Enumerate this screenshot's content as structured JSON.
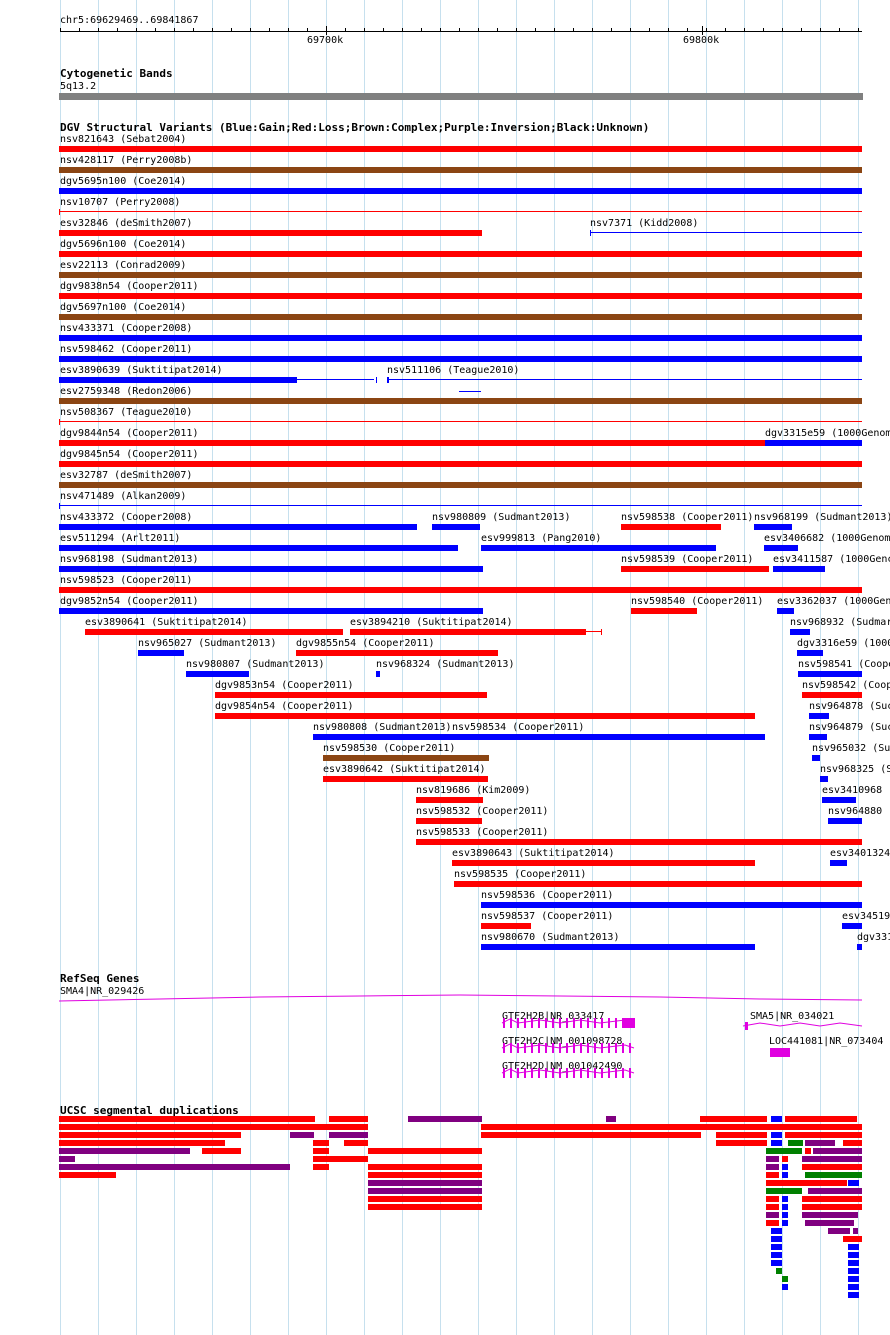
{
  "colors": {
    "gain": "#0000ff",
    "loss": "#ff0000",
    "complex": "#8b4513",
    "inversion": "#800080",
    "unknown": "#000000",
    "refseq": "#e000e0",
    "segdup_red": "#ff0000",
    "segdup_purple": "#800080",
    "segdup_green": "#008000",
    "segdup_blue": "#0000ff",
    "band": "#808080",
    "gridline": "#c6e0ee"
  },
  "ruler": {
    "position": "chr5:69629469..69841867",
    "tick_labels": [
      "69700k",
      "69800k"
    ]
  },
  "cytoband": {
    "title": "Cytogenetic Bands",
    "band_name": "5q13.2"
  },
  "dgv": {
    "title": "DGV Structural Variants (Blue:Gain;Red:Loss;Brown:Complex;Purple:Inversion;Black:Unknown)",
    "features": [
      {
        "label": "nsv821643 (Sebat2004)",
        "type": "loss",
        "style": "bar"
      },
      {
        "label": "nsv428117 (Perry2008b)",
        "type": "complex",
        "style": "bar"
      },
      {
        "label": "dgv5695n100 (Coe2014)",
        "type": "gain",
        "style": "bar"
      },
      {
        "label": "nsv10707 (Perry2008)",
        "type": "loss",
        "style": "line"
      },
      {
        "label": "esv32846 (deSmith2007)",
        "type": "loss",
        "style": "bar"
      },
      {
        "label": "nsv7371 (Kidd2008)",
        "type": "gain",
        "style": "line"
      },
      {
        "label": "dgv5696n100 (Coe2014)",
        "type": "loss",
        "style": "bar"
      },
      {
        "label": "esv22113 (Conrad2009)",
        "type": "complex",
        "style": "bar"
      },
      {
        "label": "dgv9838n54 (Cooper2011)",
        "type": "loss",
        "style": "bar"
      },
      {
        "label": "dgv5697n100 (Coe2014)",
        "type": "complex",
        "style": "bar"
      },
      {
        "label": "nsv433371 (Cooper2008)",
        "type": "gain",
        "style": "bar"
      },
      {
        "label": "nsv598462 (Cooper2011)",
        "type": "gain",
        "style": "bar"
      },
      {
        "label": "esv3890639 (Suktitipat2014)",
        "type": "gain",
        "style": "bar"
      },
      {
        "label": "nsv511106 (Teague2010)",
        "type": "gain",
        "style": "line"
      },
      {
        "label": "esv2759348 (Redon2006)",
        "type": "complex",
        "style": "bar"
      },
      {
        "label": "nsv508367 (Teague2010)",
        "type": "loss",
        "style": "line"
      },
      {
        "label": "dgv9844n54 (Cooper2011)",
        "type": "loss",
        "style": "bar"
      },
      {
        "label": "dgv3315e59 (1000Genom",
        "type": "gain",
        "style": "bar"
      },
      {
        "label": "dgv9845n54 (Cooper2011)",
        "type": "loss",
        "style": "bar"
      },
      {
        "label": "esv32787 (deSmith2007)",
        "type": "complex",
        "style": "bar"
      },
      {
        "label": "nsv471489 (Alkan2009)",
        "type": "gain",
        "style": "line"
      },
      {
        "label": "nsv433372 (Cooper2008)",
        "type": "gain",
        "style": "bar"
      },
      {
        "label": "nsv980809 (Sudmant2013)",
        "type": "gain",
        "style": "bar"
      },
      {
        "label": "nsv598538 (Cooper2011)",
        "type": "loss",
        "style": "bar"
      },
      {
        "label": "nsv968199 (Sudmant2013)",
        "type": "gain",
        "style": "bar"
      },
      {
        "label": "esv511294 (Arlt2011)",
        "type": "gain",
        "style": "bar"
      },
      {
        "label": "esv999813 (Pang2010)",
        "type": "gain",
        "style": "bar"
      },
      {
        "label": "esv3406682 (1000Genom",
        "type": "gain",
        "style": "bar"
      },
      {
        "label": "nsv968198 (Sudmant2013)",
        "type": "gain",
        "style": "bar"
      },
      {
        "label": "nsv598539 (Cooper2011)",
        "type": "loss",
        "style": "bar"
      },
      {
        "label": "esv3411587 (1000Genc",
        "type": "gain",
        "style": "bar"
      },
      {
        "label": "nsv598523 (Cooper2011)",
        "type": "loss",
        "style": "bar"
      },
      {
        "label": "dgv9852n54 (Cooper2011)",
        "type": "gain",
        "style": "bar"
      },
      {
        "label": "nsv598540 (Cooper2011)",
        "type": "loss",
        "style": "bar"
      },
      {
        "label": "esv3362037 (1000Gen",
        "type": "gain",
        "style": "bar"
      },
      {
        "label": "esv3890641 (Suktitipat2014)",
        "type": "loss",
        "style": "bar"
      },
      {
        "label": "esv3894210 (Suktitipat2014)",
        "type": "loss",
        "style": "bar"
      },
      {
        "label": "nsv968932 (Sudmar",
        "type": "gain",
        "style": "bar"
      },
      {
        "label": "nsv965027 (Sudmant2013)",
        "type": "gain",
        "style": "bar"
      },
      {
        "label": "dgv9855n54 (Cooper2011)",
        "type": "loss",
        "style": "bar"
      },
      {
        "label": "dgv3316e59 (1000",
        "type": "gain",
        "style": "bar"
      },
      {
        "label": "nsv980807 (Sudmant2013)",
        "type": "gain",
        "style": "bar"
      },
      {
        "label": "nsv968324 (Sudmant2013)",
        "type": "gain",
        "style": "bar"
      },
      {
        "label": "nsv598541 (Coope",
        "type": "gain",
        "style": "bar"
      },
      {
        "label": "dgv9853n54 (Cooper2011)",
        "type": "loss",
        "style": "bar"
      },
      {
        "label": "nsv598542 (Coop",
        "type": "loss",
        "style": "bar"
      },
      {
        "label": "dgv9854n54 (Cooper2011)",
        "type": "loss",
        "style": "bar"
      },
      {
        "label": "nsv964878 (Suc",
        "type": "gain",
        "style": "bar"
      },
      {
        "label": "nsv980808 (Sudmant2013)",
        "type": "gain",
        "style": "bar"
      },
      {
        "label": "nsv598534 (Cooper2011)",
        "type": "gain",
        "style": "bar"
      },
      {
        "label": "nsv964879 (Suc",
        "type": "gain",
        "style": "bar"
      },
      {
        "label": "nsv598530 (Cooper2011)",
        "type": "complex",
        "style": "bar"
      },
      {
        "label": "nsv965032 (Su",
        "type": "gain",
        "style": "bar"
      },
      {
        "label": "esv3890642 (Suktitipat2014)",
        "type": "loss",
        "style": "bar"
      },
      {
        "label": "nsv968325 (Su",
        "type": "gain",
        "style": "bar"
      },
      {
        "label": "nsv819686 (Kim2009)",
        "type": "loss",
        "style": "bar"
      },
      {
        "label": "esv3410968 (",
        "type": "gain",
        "style": "bar"
      },
      {
        "label": "nsv598532 (Cooper2011)",
        "type": "loss",
        "style": "bar"
      },
      {
        "label": "nsv964880 (",
        "type": "gain",
        "style": "bar"
      },
      {
        "label": "nsv598533 (Cooper2011)",
        "type": "loss",
        "style": "bar"
      },
      {
        "label": "esv3890643 (Suktitipat2014)",
        "type": "loss",
        "style": "bar"
      },
      {
        "label": "esv3401324",
        "type": "gain",
        "style": "bar"
      },
      {
        "label": "nsv598535 (Cooper2011)",
        "type": "loss",
        "style": "bar"
      },
      {
        "label": "nsv598536 (Cooper2011)",
        "type": "gain",
        "style": "bar"
      },
      {
        "label": "nsv598537 (Cooper2011)",
        "type": "loss",
        "style": "bar"
      },
      {
        "label": "esv34519",
        "type": "gain",
        "style": "bar"
      },
      {
        "label": "nsv980670 (Sudmant2013)",
        "type": "gain",
        "style": "bar"
      },
      {
        "label": "dgv331",
        "type": "gain",
        "style": "bar"
      }
    ]
  },
  "refseq": {
    "title": "RefSeq Genes",
    "genes": [
      {
        "label": "SMA4|NR_029426"
      },
      {
        "label": "GTF2H2B|NR_033417"
      },
      {
        "label": "GTF2H2C|NM_001098728"
      },
      {
        "label": "GTF2H2D|NM_001042490"
      },
      {
        "label": "SMA5|NR_034021"
      },
      {
        "label": "LOC441081|NR_073404"
      }
    ]
  },
  "segdup": {
    "title": "UCSC segmental duplications"
  }
}
